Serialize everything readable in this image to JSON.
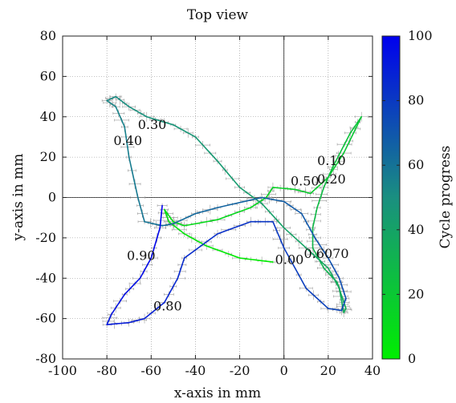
{
  "chart_data": {
    "type": "line",
    "title": "Top view",
    "xlabel": "x-axis in mm",
    "ylabel": "y-axis in mm",
    "xlim": [
      -100,
      40
    ],
    "ylim": [
      -80,
      80
    ],
    "xticks": [
      "-100",
      "-80",
      "-60",
      "-40",
      "-20",
      "0",
      "20",
      "40"
    ],
    "yticks": [
      "-80",
      "-60",
      "-40",
      "-20",
      "0",
      "20",
      "40",
      "60",
      "80"
    ],
    "grid": true,
    "zero_lines": true,
    "error_bars": true,
    "colorbar": {
      "label": "Cycle progress",
      "range": [
        0,
        100
      ],
      "ticks": [
        "0",
        "20",
        "40",
        "60",
        "80",
        "100"
      ],
      "colors": [
        "#00ee00",
        "#1a8f80",
        "#0000ee"
      ]
    },
    "annotations": [
      {
        "text": "0.00",
        "x": -4,
        "y": -33
      },
      {
        "text": "0.10",
        "x": 15,
        "y": 16
      },
      {
        "text": "0.20",
        "x": 15,
        "y": 7
      },
      {
        "text": "0.30",
        "x": -66,
        "y": 34
      },
      {
        "text": "0.40",
        "x": -77,
        "y": 26
      },
      {
        "text": "0.50",
        "x": 3,
        "y": 6
      },
      {
        "text": "0.6070",
        "x": 9,
        "y": -30
      },
      {
        "text": "0.80",
        "x": -59,
        "y": -56
      },
      {
        "text": "0.90",
        "x": -71,
        "y": -31
      }
    ],
    "series": [
      {
        "points": [
          [
            -5,
            -32
          ],
          [
            -20,
            -30
          ],
          [
            -35,
            -24
          ],
          [
            -45,
            -18
          ],
          [
            -52,
            -12
          ],
          [
            -54,
            -6
          ],
          [
            -50,
            -12
          ],
          [
            -45,
            -14
          ],
          [
            -30,
            -11
          ],
          [
            -15,
            -5
          ],
          [
            -8,
            0
          ],
          [
            -5,
            5
          ],
          [
            5,
            4
          ],
          [
            12,
            2
          ],
          [
            20,
            10
          ],
          [
            27,
            22
          ],
          [
            35,
            40
          ],
          [
            30,
            32
          ],
          [
            22,
            15
          ],
          [
            18,
            5
          ],
          [
            15,
            -5
          ],
          [
            13,
            -15
          ],
          [
            13,
            -25
          ],
          [
            18,
            -35
          ],
          [
            24,
            -42
          ],
          [
            28,
            -55
          ],
          [
            27,
            -57
          ],
          [
            25,
            -45
          ],
          [
            20,
            -35
          ],
          [
            10,
            -25
          ],
          [
            0,
            -15
          ],
          [
            -10,
            -3
          ],
          [
            -20,
            5
          ],
          [
            -30,
            18
          ],
          [
            -40,
            30
          ],
          [
            -50,
            36
          ],
          [
            -62,
            40
          ],
          [
            -70,
            45
          ],
          [
            -76,
            50
          ],
          [
            -80,
            48
          ],
          [
            -76,
            45
          ],
          [
            -72,
            35
          ],
          [
            -70,
            20
          ],
          [
            -66,
            0
          ],
          [
            -63,
            -12
          ],
          [
            -55,
            -14
          ],
          [
            -50,
            -13
          ],
          [
            -40,
            -8
          ],
          [
            -30,
            -5
          ],
          [
            -10,
            0
          ],
          [
            0,
            -2
          ],
          [
            8,
            -8
          ],
          [
            14,
            -20
          ],
          [
            20,
            -30
          ],
          [
            25,
            -40
          ],
          [
            28,
            -50
          ],
          [
            26,
            -56
          ],
          [
            20,
            -55
          ],
          [
            10,
            -45
          ],
          [
            0,
            -25
          ],
          [
            -5,
            -12
          ],
          [
            -15,
            -12
          ],
          [
            -30,
            -18
          ],
          [
            -45,
            -30
          ],
          [
            -48,
            -40
          ],
          [
            -54,
            -52
          ],
          [
            -63,
            -60
          ],
          [
            -70,
            -62
          ],
          [
            -80,
            -63
          ],
          [
            -78,
            -58
          ],
          [
            -72,
            -48
          ],
          [
            -65,
            -40
          ],
          [
            -60,
            -30
          ],
          [
            -56,
            -15
          ],
          [
            -55,
            -4
          ]
        ]
      }
    ]
  }
}
